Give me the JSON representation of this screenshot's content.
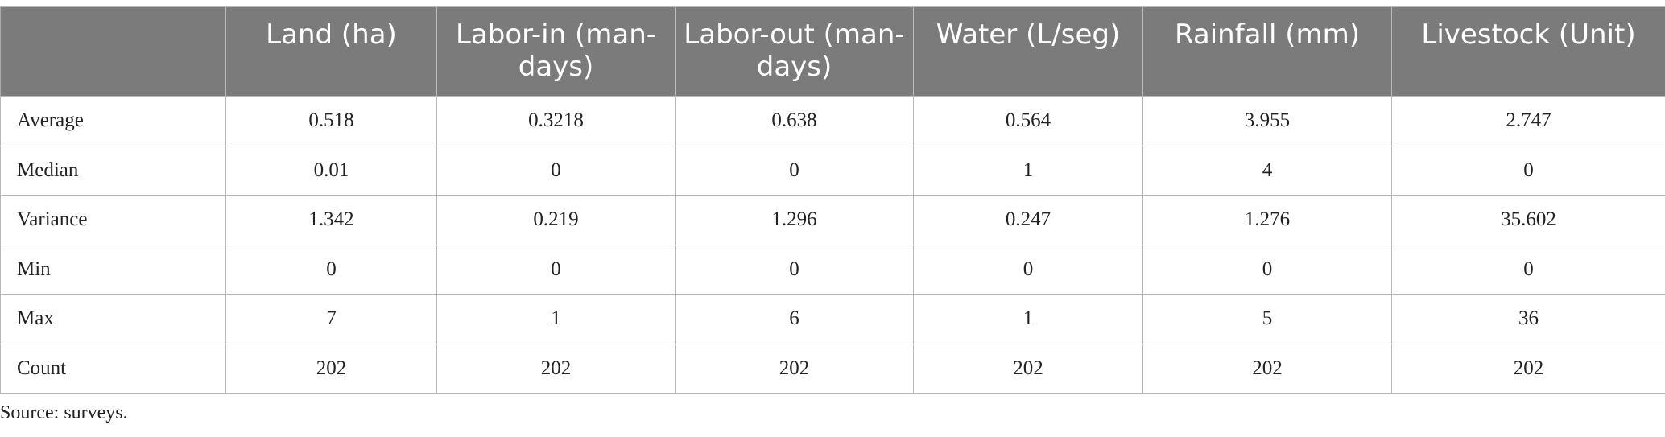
{
  "table": {
    "headers": [
      "",
      "Land (ha)",
      "Labor-in (man-days)",
      "Labor-out (man-days)",
      "Water (L/seg)",
      "Rainfall (mm)",
      "Livestock (Unit)"
    ],
    "rows": [
      [
        "Average",
        "0.518",
        "0.3218",
        "0.638",
        "0.564",
        "3.955",
        "2.747"
      ],
      [
        "Median",
        "0.01",
        "0",
        "0",
        "1",
        "4",
        "0"
      ],
      [
        "Variance",
        "1.342",
        "0.219",
        "1.296",
        "0.247",
        "1.276",
        "35.602"
      ],
      [
        "Min",
        "0",
        "0",
        "0",
        "0",
        "0",
        "0"
      ],
      [
        "Max",
        "7",
        "1",
        "6",
        "1",
        "5",
        "36"
      ],
      [
        "Count",
        "202",
        "202",
        "202",
        "202",
        "202",
        "202"
      ]
    ]
  },
  "source_note": "Source: surveys.",
  "colors": {
    "header_bg": "#7a7b7a",
    "header_text": "#ffffff",
    "grid": "#b9b9b9",
    "body_text": "#222222"
  }
}
